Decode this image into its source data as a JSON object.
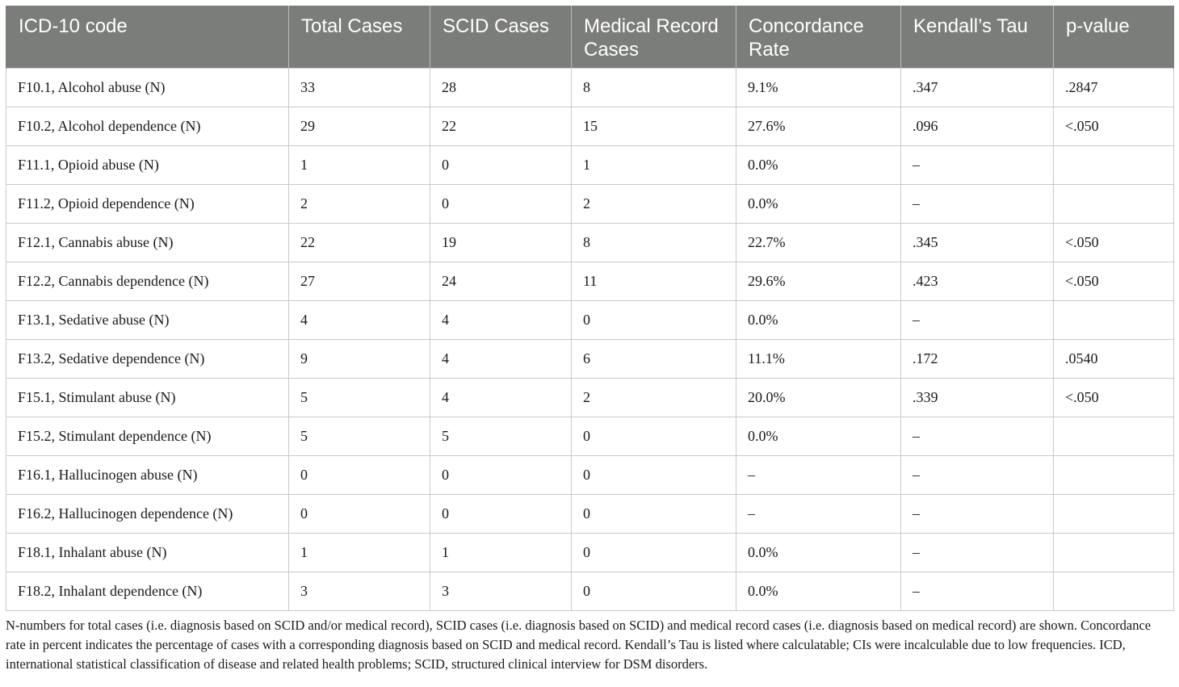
{
  "table": {
    "headers": [
      "ICD-10 code",
      "Total Cases",
      "SCID Cases",
      "Medical Record Cases",
      "Concordance Rate",
      "Kendall’s Tau",
      "p-value"
    ],
    "rows": [
      [
        "F10.1, Alcohol abuse (N)",
        "33",
        "28",
        "8",
        "9.1%",
        ".347",
        ".2847"
      ],
      [
        "F10.2, Alcohol dependence (N)",
        "29",
        "22",
        "15",
        "27.6%",
        ".096",
        "<.050"
      ],
      [
        "F11.1, Opioid abuse (N)",
        "1",
        "0",
        "1",
        "0.0%",
        "–",
        ""
      ],
      [
        "F11.2, Opioid dependence (N)",
        "2",
        "0",
        "2",
        "0.0%",
        "–",
        ""
      ],
      [
        "F12.1, Cannabis abuse (N)",
        "22",
        "19",
        "8",
        "22.7%",
        ".345",
        "<.050"
      ],
      [
        "F12.2, Cannabis dependence (N)",
        "27",
        "24",
        "11",
        "29.6%",
        ".423",
        "<.050"
      ],
      [
        "F13.1, Sedative abuse (N)",
        "4",
        "4",
        "0",
        "0.0%",
        "–",
        ""
      ],
      [
        "F13.2, Sedative dependence (N)",
        "9",
        "4",
        "6",
        "11.1%",
        ".172",
        ".0540"
      ],
      [
        "F15.1, Stimulant abuse (N)",
        "5",
        "4",
        "2",
        "20.0%",
        ".339",
        "<.050"
      ],
      [
        "F15.2, Stimulant dependence (N)",
        "5",
        "5",
        "0",
        "0.0%",
        "–",
        ""
      ],
      [
        "F16.1, Hallucinogen abuse (N)",
        "0",
        "0",
        "0",
        "–",
        "–",
        ""
      ],
      [
        "F16.2, Hallucinogen dependence (N)",
        "0",
        "0",
        "0",
        "–",
        "–",
        ""
      ],
      [
        "F18.1, Inhalant abuse (N)",
        "1",
        "1",
        "0",
        "0.0%",
        "–",
        ""
      ],
      [
        "F18.2, Inhalant dependence (N)",
        "3",
        "3",
        "0",
        "0.0%",
        "–",
        ""
      ]
    ]
  },
  "footnote": "N-numbers for total cases (i.e. diagnosis based on SCID and/or medical record), SCID cases (i.e. diagnosis based on SCID) and medical record cases (i.e. diagnosis based on medical record) are shown. Concordance rate in percent indicates the percentage of cases with a corresponding diagnosis based on SCID and medical record. Kendall’s Tau is listed where calculatable; CIs were incalculable due to low frequencies. ICD, international statistical classification of disease and related health problems; SCID, structured clinical interview for DSM disorders.",
  "colors": {
    "header_bg": "#7b7d7b",
    "header_text": "#ffffff",
    "grid_line": "#c9c9c9"
  }
}
